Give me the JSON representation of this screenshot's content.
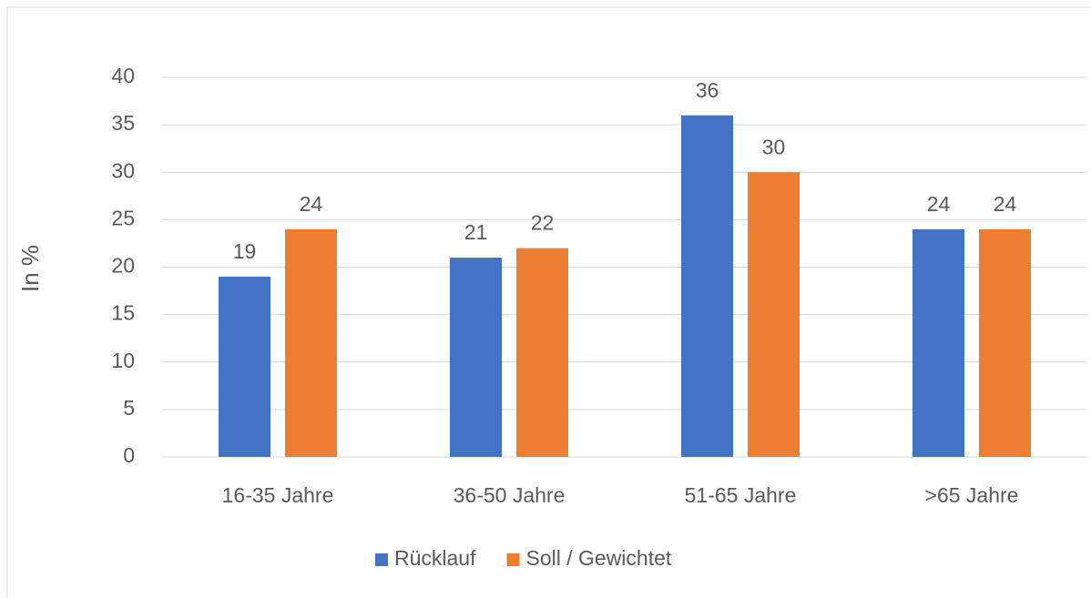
{
  "chart_data": {
    "type": "bar",
    "y_label": "In %",
    "categories": [
      "16-35 Jahre",
      "36-50 Jahre",
      "51-65 Jahre",
      ">65 Jahre"
    ],
    "series": [
      {
        "name": "Rücklauf",
        "color": "#4472c4",
        "values": [
          19,
          21,
          36,
          24
        ]
      },
      {
        "name": "Soll / Gewichtet",
        "color": "#ed7d31",
        "values": [
          24,
          22,
          30,
          24
        ]
      }
    ],
    "ylim": [
      0,
      40
    ],
    "yticks": [
      0,
      5,
      10,
      15,
      20,
      25,
      30,
      35,
      40
    ],
    "grid": true,
    "legend": "bottom"
  }
}
